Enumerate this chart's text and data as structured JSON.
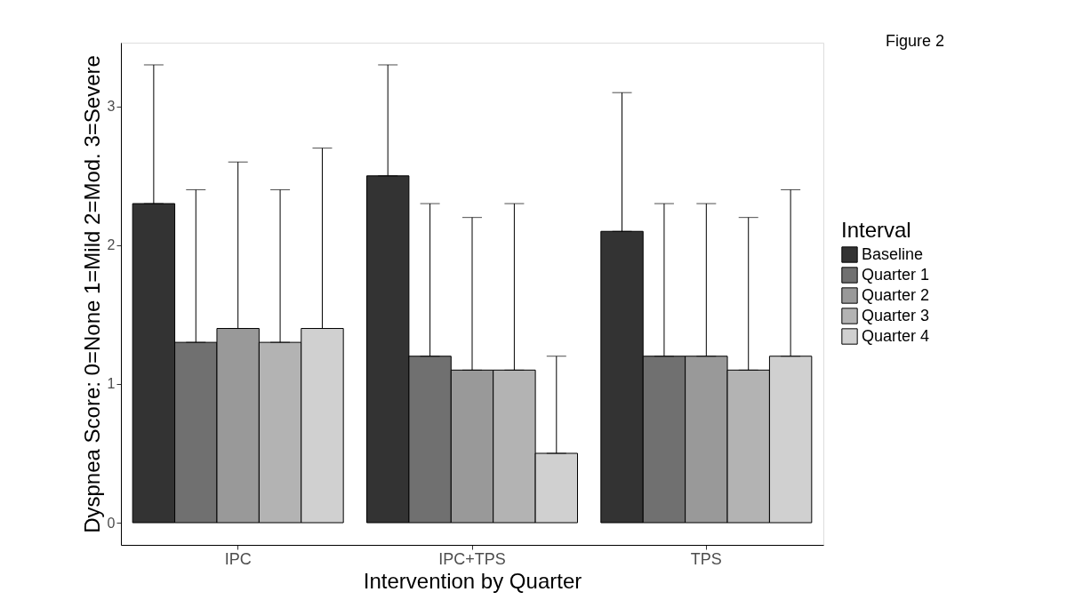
{
  "chart_data": {
    "type": "bar",
    "xlabel": "Intervention by Quarter",
    "ylabel": "Dyspnea Score: 0=None 1=Mild 2=Mod. 3=Severe",
    "legend_title": "Interval",
    "annotations": [
      "Figure 2"
    ],
    "categories": [
      "IPC",
      "IPC+TPS",
      "TPS"
    ],
    "series": [
      {
        "name": "Baseline",
        "color": "#333333",
        "values": [
          2.3,
          2.5,
          2.1
        ],
        "errors": [
          [
            2.3,
            3.3
          ],
          [
            2.5,
            3.3
          ],
          [
            2.1,
            3.1
          ]
        ]
      },
      {
        "name": "Quarter 1",
        "color": "#707070",
        "values": [
          1.3,
          1.2,
          1.2
        ],
        "errors": [
          [
            1.3,
            2.4
          ],
          [
            1.2,
            2.3
          ],
          [
            1.2,
            2.3
          ]
        ]
      },
      {
        "name": "Quarter 2",
        "color": "#999999",
        "values": [
          1.4,
          1.1,
          1.2
        ],
        "errors": [
          [
            1.4,
            2.6
          ],
          [
            1.1,
            2.2
          ],
          [
            1.2,
            2.3
          ]
        ]
      },
      {
        "name": "Quarter 3",
        "color": "#b3b3b3",
        "values": [
          1.3,
          1.1,
          1.1
        ],
        "errors": [
          [
            1.3,
            2.4
          ],
          [
            1.1,
            2.3
          ],
          [
            1.1,
            2.2
          ]
        ]
      },
      {
        "name": "Quarter 4",
        "color": "#d0d0d0",
        "values": [
          1.4,
          0.5,
          1.2
        ],
        "errors": [
          [
            1.4,
            2.7
          ],
          [
            0.5,
            1.2
          ],
          [
            1.2,
            2.4
          ]
        ]
      }
    ],
    "ylim": [
      -0.16,
      3.46
    ],
    "yticks": [
      0,
      1,
      2,
      3
    ],
    "grid": false,
    "legend": "right"
  }
}
